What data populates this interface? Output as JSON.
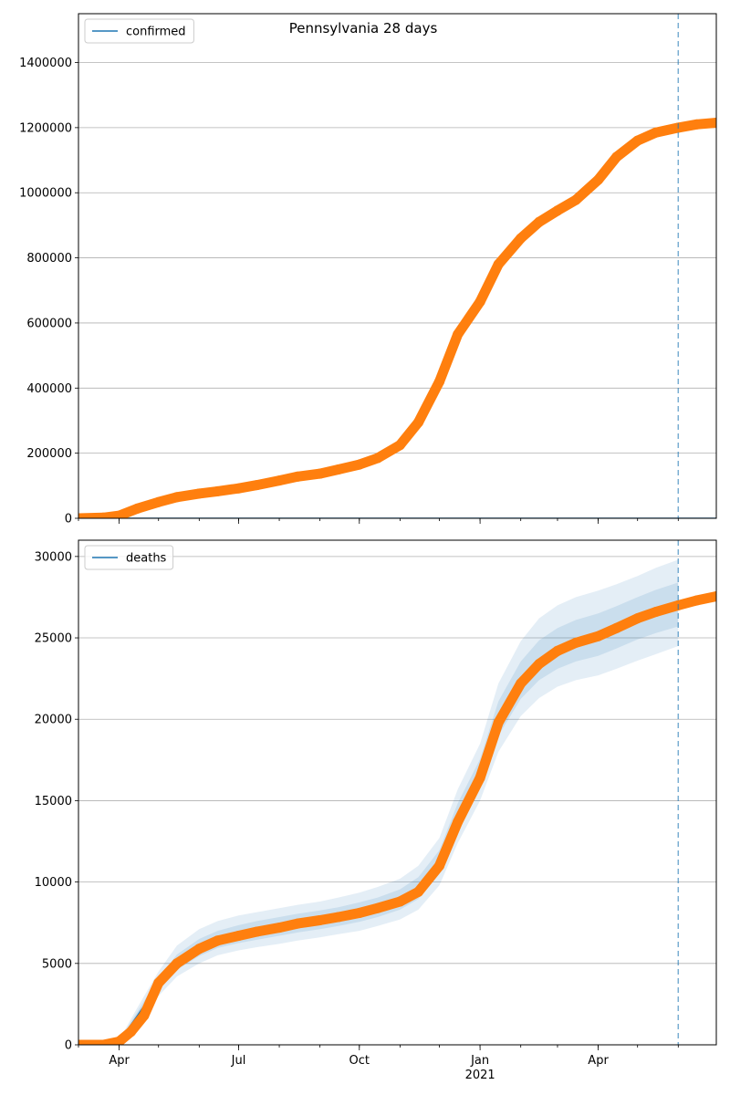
{
  "title": "Pennsylvania 28 days",
  "colors": {
    "model_line": "#1f77b4",
    "observed": "#ff7f0e",
    "band": "#1f77b4",
    "vline": "#1f77b4",
    "grid": "#b0b0b0"
  },
  "chart_data": [
    {
      "type": "line",
      "legend": [
        "confirmed"
      ],
      "legend_position": "top-left",
      "grid": "y",
      "x_type": "date",
      "xlim": [
        "2020-03-01",
        "2021-06-30"
      ],
      "ylim": [
        0,
        1550000
      ],
      "y_ticks": [
        0,
        200000,
        400000,
        600000,
        800000,
        1000000,
        1200000,
        1400000
      ],
      "forecast_date": "2021-06-01",
      "series": [
        {
          "name": "confirmed",
          "kind": "model-line",
          "x": [
            "2020-03-01",
            "2021-06-30"
          ],
          "y": [
            0,
            0
          ]
        },
        {
          "kind": "observed",
          "x": [
            "2020-03-01",
            "2020-03-20",
            "2020-04-01",
            "2020-04-15",
            "2020-05-01",
            "2020-05-15",
            "2020-06-01",
            "2020-06-15",
            "2020-07-01",
            "2020-07-15",
            "2020-08-01",
            "2020-08-15",
            "2020-09-01",
            "2020-09-15",
            "2020-10-01",
            "2020-10-15",
            "2020-11-01",
            "2020-11-15",
            "2020-12-01",
            "2020-12-15",
            "2021-01-01",
            "2021-01-15",
            "2021-02-01",
            "2021-02-15",
            "2021-03-01",
            "2021-03-15",
            "2021-04-01",
            "2021-04-15",
            "2021-05-01",
            "2021-05-15",
            "2021-06-01",
            "2021-06-15",
            "2021-06-30"
          ],
          "y": [
            0,
            2000,
            8000,
            30000,
            50000,
            65000,
            76000,
            83000,
            92000,
            102000,
            116000,
            128000,
            137000,
            150000,
            165000,
            185000,
            225000,
            295000,
            420000,
            565000,
            665000,
            780000,
            860000,
            910000,
            945000,
            978000,
            1040000,
            1110000,
            1160000,
            1185000,
            1200000,
            1210000,
            1215000
          ]
        }
      ]
    },
    {
      "type": "line",
      "legend": [
        "deaths"
      ],
      "legend_position": "top-left",
      "grid": "y",
      "x_type": "date",
      "xlim": [
        "2020-03-01",
        "2021-06-30"
      ],
      "ylim": [
        0,
        31000
      ],
      "y_ticks": [
        0,
        5000,
        10000,
        15000,
        20000,
        25000,
        30000
      ],
      "x_ticks": [
        {
          "label": "Apr",
          "date": "2020-04-01"
        },
        {
          "label": "Jul",
          "date": "2020-07-01"
        },
        {
          "label": "Oct",
          "date": "2020-10-01"
        },
        {
          "label": "Jan",
          "date": "2021-01-01"
        },
        {
          "label": "Apr",
          "date": "2021-04-01"
        }
      ],
      "x_sublabel": {
        "label": "2021",
        "date": "2021-01-01"
      },
      "forecast_date": "2021-06-01",
      "series": [
        {
          "name": "deaths",
          "kind": "model-line",
          "x": [
            "2020-03-01",
            "2020-03-20",
            "2020-04-01",
            "2020-04-15",
            "2020-05-01",
            "2020-05-15",
            "2020-06-01",
            "2020-06-15",
            "2020-07-01",
            "2020-07-15",
            "2020-08-01",
            "2020-08-15",
            "2020-09-01",
            "2020-09-15",
            "2020-10-01",
            "2020-10-15",
            "2020-11-01",
            "2020-11-15",
            "2020-12-01",
            "2020-12-15",
            "2021-01-01",
            "2021-01-15",
            "2021-02-01",
            "2021-02-15",
            "2021-03-01",
            "2021-03-15",
            "2021-04-01",
            "2021-04-15",
            "2021-05-01",
            "2021-05-15",
            "2021-06-01"
          ],
          "y": [
            0,
            0,
            200,
            1800,
            3700,
            5000,
            5900,
            6400,
            6750,
            7000,
            7250,
            7450,
            7650,
            7850,
            8100,
            8400,
            8900,
            9600,
            11200,
            14000,
            16600,
            20000,
            22300,
            23500,
            24200,
            24700,
            25100,
            25600,
            26200,
            26600,
            27000
          ]
        },
        {
          "kind": "band-outer",
          "x": [
            "2020-03-01",
            "2020-03-20",
            "2020-04-01",
            "2020-04-15",
            "2020-05-01",
            "2020-05-15",
            "2020-06-01",
            "2020-06-15",
            "2020-07-01",
            "2020-07-15",
            "2020-08-01",
            "2020-08-15",
            "2020-09-01",
            "2020-09-15",
            "2020-10-01",
            "2020-10-15",
            "2020-11-01",
            "2020-11-15",
            "2020-12-01",
            "2020-12-15",
            "2021-01-01",
            "2021-01-15",
            "2021-02-01",
            "2021-02-15",
            "2021-03-01",
            "2021-03-15",
            "2021-04-01",
            "2021-04-15",
            "2021-05-01",
            "2021-05-15",
            "2021-06-01"
          ],
          "upper": [
            0,
            0,
            300,
            2300,
            4500,
            6100,
            7100,
            7600,
            7950,
            8150,
            8400,
            8600,
            8800,
            9050,
            9350,
            9700,
            10200,
            11000,
            12700,
            15700,
            18500,
            22200,
            24800,
            26200,
            27000,
            27500,
            27900,
            28300,
            28800,
            29300,
            29800
          ],
          "lower": [
            0,
            0,
            100,
            1300,
            3000,
            4200,
            5000,
            5500,
            5800,
            6000,
            6200,
            6400,
            6600,
            6800,
            7000,
            7300,
            7700,
            8300,
            9800,
            12400,
            15000,
            18000,
            20200,
            21300,
            22000,
            22400,
            22700,
            23100,
            23600,
            24000,
            24500
          ]
        },
        {
          "kind": "band-inner",
          "x": [
            "2020-03-01",
            "2020-03-20",
            "2020-04-01",
            "2020-04-15",
            "2020-05-01",
            "2020-05-15",
            "2020-06-01",
            "2020-06-15",
            "2020-07-01",
            "2020-07-15",
            "2020-08-01",
            "2020-08-15",
            "2020-09-01",
            "2020-09-15",
            "2020-10-01",
            "2020-10-15",
            "2020-11-01",
            "2020-11-15",
            "2020-12-01",
            "2020-12-15",
            "2021-01-01",
            "2021-01-15",
            "2021-02-01",
            "2021-02-15",
            "2021-03-01",
            "2021-03-15",
            "2021-04-01",
            "2021-04-15",
            "2021-05-01",
            "2021-05-15",
            "2021-06-01"
          ],
          "upper": [
            0,
            0,
            250,
            2050,
            4100,
            5550,
            6500,
            7000,
            7350,
            7600,
            7850,
            8050,
            8250,
            8450,
            8750,
            9050,
            9550,
            10300,
            11950,
            14850,
            17550,
            21100,
            23550,
            24850,
            25600,
            26100,
            26500,
            26950,
            27500,
            27950,
            28400
          ],
          "lower": [
            0,
            0,
            150,
            1550,
            3350,
            4600,
            5450,
            5950,
            6250,
            6450,
            6700,
            6900,
            7100,
            7300,
            7550,
            7850,
            8300,
            8950,
            10500,
            13200,
            15800,
            19000,
            21250,
            22400,
            23100,
            23550,
            23900,
            24350,
            24900,
            25300,
            25700
          ]
        },
        {
          "kind": "observed",
          "x": [
            "2020-03-01",
            "2020-03-20",
            "2020-04-01",
            "2020-04-10",
            "2020-04-20",
            "2020-05-01",
            "2020-05-15",
            "2020-06-01",
            "2020-06-15",
            "2020-07-01",
            "2020-07-15",
            "2020-08-01",
            "2020-08-15",
            "2020-09-01",
            "2020-09-15",
            "2020-10-01",
            "2020-10-15",
            "2020-11-01",
            "2020-11-15",
            "2020-12-01",
            "2020-12-15",
            "2021-01-01",
            "2021-01-15",
            "2021-02-01",
            "2021-02-15",
            "2021-03-01",
            "2021-03-15",
            "2021-04-01",
            "2021-04-15",
            "2021-05-01",
            "2021-05-15",
            "2021-06-01",
            "2021-06-15",
            "2021-06-30"
          ],
          "y": [
            0,
            0,
            200,
            800,
            1800,
            3800,
            5000,
            5900,
            6400,
            6700,
            6950,
            7200,
            7450,
            7650,
            7850,
            8100,
            8400,
            8800,
            9400,
            11000,
            13700,
            16400,
            19800,
            22200,
            23400,
            24200,
            24700,
            25100,
            25600,
            26200,
            26600,
            27000,
            27300,
            27550
          ]
        }
      ]
    }
  ]
}
